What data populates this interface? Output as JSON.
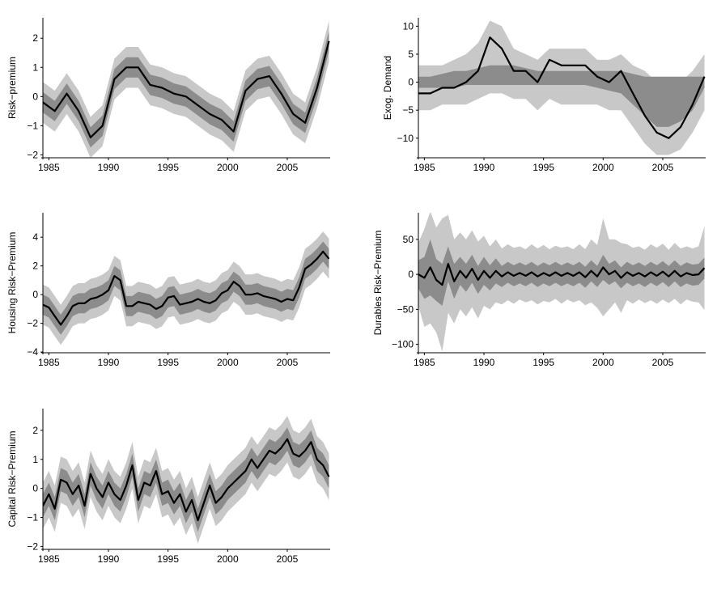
{
  "chart_data": [
    {
      "type": "line",
      "ylabel": "Risk−premium",
      "xlim": [
        1984.5,
        2008.6
      ],
      "ylim": [
        -2.1,
        2.7
      ],
      "xticks": [
        1985,
        1990,
        1995,
        2000,
        2005
      ],
      "xtick_labels": [
        "1985",
        "1990",
        "1995",
        "2000",
        "2005"
      ],
      "yticks": [
        -2,
        -1,
        0,
        1,
        2
      ],
      "ytick_labels": [
        "−2",
        "−1",
        "0",
        "1",
        "2"
      ],
      "band_inner": 0.35,
      "band_outer": 0.7,
      "band_note": "Median with two shaded uncertainty bands (dark inner, light outer)",
      "x": [
        1984.5,
        1985.5,
        1986.5,
        1987.5,
        1988.5,
        1989.5,
        1990.5,
        1991.5,
        1992.5,
        1993.5,
        1994.5,
        1995.5,
        1996.5,
        1997.5,
        1998.5,
        1999.5,
        2000.5,
        2001.5,
        2002.5,
        2003.5,
        2004.5,
        2005.5,
        2006.5,
        2007.5,
        2008.5
      ],
      "y": [
        -0.2,
        -0.5,
        0.1,
        -0.5,
        -1.4,
        -1.0,
        0.6,
        1.0,
        1.0,
        0.4,
        0.3,
        0.1,
        0.0,
        -0.3,
        -0.6,
        -0.8,
        -1.2,
        0.2,
        0.6,
        0.7,
        0.1,
        -0.6,
        -0.9,
        0.3,
        1.9
      ]
    },
    {
      "type": "line",
      "ylabel": "Exog. Demand",
      "xlim": [
        1984.5,
        2008.6
      ],
      "ylim": [
        -13.5,
        11.5
      ],
      "xticks": [
        1985,
        1990,
        1995,
        2000,
        2005
      ],
      "xtick_labels": [
        "1985",
        "1990",
        "1995",
        "2000",
        "2005"
      ],
      "yticks": [
        -10,
        -5,
        0,
        5,
        10
      ],
      "ytick_labels": [
        "−10",
        "−5",
        "0",
        "5",
        "10"
      ],
      "band_note": "Light outer band and dark inner band, not centred on the median line",
      "x": [
        1984.5,
        1985.5,
        1986.5,
        1987.5,
        1988.5,
        1989.5,
        1990.5,
        1991.5,
        1992.5,
        1993.5,
        1994.5,
        1995.5,
        1996.5,
        1997.5,
        1998.5,
        1999.5,
        2000.5,
        2001.5,
        2002.5,
        2003.5,
        2004.5,
        2005.5,
        2006.5,
        2007.5,
        2008.5
      ],
      "y": [
        -2,
        -2,
        -1,
        -1,
        0,
        2,
        8,
        6,
        2,
        2,
        0,
        4,
        3,
        3,
        3,
        1,
        0,
        2,
        -2,
        -6,
        -9,
        -10,
        -8,
        -4,
        1
      ],
      "band_dark_lower": [
        -1,
        -1,
        -1,
        -1,
        -0.5,
        -0.5,
        -0.5,
        -0.5,
        -0.5,
        -0.5,
        -0.5,
        -0.5,
        -0.5,
        -0.5,
        -0.5,
        -1,
        -1.5,
        -2,
        -4,
        -6,
        -8,
        -8,
        -7,
        -5,
        -1
      ],
      "band_dark_upper": [
        1,
        1,
        1.5,
        2,
        2,
        2.5,
        3,
        3,
        3,
        2.5,
        2,
        2,
        2,
        2,
        2,
        2,
        2,
        2,
        1.5,
        1,
        1,
        1,
        1,
        1,
        1
      ],
      "band_light_lower": [
        -5,
        -5,
        -4,
        -4,
        -4,
        -3,
        -2,
        -2,
        -3,
        -3,
        -5,
        -3,
        -4,
        -4,
        -4,
        -4,
        -5,
        -5,
        -8,
        -11,
        -13,
        -13,
        -12,
        -9,
        -5
      ],
      "band_light_upper": [
        3,
        3,
        3,
        4,
        5,
        7,
        11,
        10,
        6,
        5,
        4,
        6,
        6,
        6,
        6,
        4,
        4,
        5,
        3,
        2,
        0,
        0,
        0,
        2,
        5
      ]
    },
    {
      "type": "line",
      "ylabel": "Housing Risk−Premium",
      "xlim": [
        1984.5,
        2008.6
      ],
      "ylim": [
        -4.05,
        5.7
      ],
      "xticks": [
        1985,
        1990,
        1995,
        2000,
        2005
      ],
      "xtick_labels": [
        "1985",
        "1990",
        "1995",
        "2000",
        "2005"
      ],
      "yticks": [
        -4,
        -2,
        0,
        2,
        4
      ],
      "ytick_labels": [
        "−4",
        "−2",
        "0",
        "2",
        "4"
      ],
      "band_inner": 0.7,
      "band_outer": 1.4,
      "x": [
        1984.5,
        1985.0,
        1985.5,
        1986.0,
        1986.5,
        1987.0,
        1987.5,
        1988.0,
        1988.5,
        1989.0,
        1989.5,
        1990.0,
        1990.5,
        1991.0,
        1991.5,
        1992.0,
        1992.5,
        1993.0,
        1993.5,
        1994.0,
        1994.5,
        1995.0,
        1995.5,
        1996.0,
        1996.5,
        1997.0,
        1997.5,
        1998.0,
        1998.5,
        1999.0,
        1999.5,
        2000.0,
        2000.5,
        2001.0,
        2001.5,
        2002.0,
        2002.5,
        2003.0,
        2003.5,
        2004.0,
        2004.5,
        2005.0,
        2005.5,
        2006.0,
        2006.5,
        2007.0,
        2007.5,
        2008.0,
        2008.5
      ],
      "y": [
        -0.7,
        -0.9,
        -1.5,
        -2.1,
        -1.5,
        -0.8,
        -0.6,
        -0.6,
        -0.3,
        -0.2,
        0.0,
        0.3,
        1.3,
        1.0,
        -0.8,
        -0.8,
        -0.5,
        -0.6,
        -0.7,
        -1.0,
        -0.8,
        -0.2,
        -0.1,
        -0.7,
        -0.6,
        -0.5,
        -0.3,
        -0.5,
        -0.6,
        -0.4,
        0.1,
        0.3,
        0.9,
        0.6,
        0.0,
        0.0,
        0.1,
        -0.1,
        -0.2,
        -0.3,
        -0.5,
        -0.3,
        -0.4,
        0.5,
        1.8,
        2.1,
        2.5,
        3.0,
        2.5
      ]
    },
    {
      "type": "line",
      "ylabel": "Durables Risk−Premium",
      "xlim": [
        1984.5,
        2008.6
      ],
      "ylim": [
        -112,
        88
      ],
      "xticks": [
        1985,
        1990,
        1995,
        2000,
        2005
      ],
      "xtick_labels": [
        "1985",
        "1990",
        "1995",
        "2000",
        "2005"
      ],
      "yticks": [
        -100,
        -50,
        0,
        50
      ],
      "ytick_labels": [
        "−100",
        "−50",
        "0",
        "50"
      ],
      "band_note": "Very wide, strongly oscillating uncertainty bands around a near-zero median",
      "x": [
        1984.5,
        1985.0,
        1985.5,
        1986.0,
        1986.5,
        1987.0,
        1987.5,
        1988.0,
        1988.5,
        1989.0,
        1989.5,
        1990.0,
        1990.5,
        1991.0,
        1991.5,
        1992.0,
        1992.5,
        1993.0,
        1993.5,
        1994.0,
        1994.5,
        1995.0,
        1995.5,
        1996.0,
        1996.5,
        1997.0,
        1997.5,
        1998.0,
        1998.5,
        1999.0,
        1999.5,
        2000.0,
        2000.5,
        2001.0,
        2001.5,
        2002.0,
        2002.5,
        2003.0,
        2003.5,
        2004.0,
        2004.5,
        2005.0,
        2005.5,
        2006.0,
        2006.5,
        2007.0,
        2007.5,
        2008.0,
        2008.5
      ],
      "y": [
        0,
        -5,
        10,
        -8,
        -15,
        15,
        -10,
        5,
        -5,
        8,
        -8,
        5,
        -5,
        5,
        -3,
        3,
        -2,
        2,
        -2,
        3,
        -3,
        2,
        -2,
        3,
        -2,
        2,
        -2,
        3,
        -4,
        5,
        -3,
        10,
        0,
        5,
        -5,
        3,
        -2,
        2,
        -3,
        3,
        -2,
        4,
        -3,
        5,
        -3,
        2,
        -1,
        0,
        9
      ],
      "band_inner": [
        20,
        30,
        40,
        30,
        30,
        25,
        25,
        20,
        20,
        20,
        20,
        20,
        18,
        18,
        15,
        15,
        15,
        15,
        15,
        15,
        15,
        15,
        15,
        15,
        15,
        15,
        15,
        15,
        15,
        15,
        15,
        18,
        15,
        15,
        15,
        15,
        15,
        15,
        15,
        15,
        15,
        15,
        15,
        15,
        15,
        15,
        15,
        15,
        15
      ],
      "band_outer": [
        45,
        70,
        80,
        75,
        95,
        70,
        60,
        55,
        55,
        55,
        55,
        50,
        45,
        45,
        40,
        40,
        40,
        38,
        38,
        40,
        40,
        40,
        38,
        38,
        40,
        38,
        38,
        40,
        40,
        45,
        45,
        70,
        50,
        45,
        50,
        40,
        40,
        38,
        38,
        40,
        40,
        40,
        38,
        40,
        40,
        38,
        38,
        40,
        60
      ]
    },
    {
      "type": "line",
      "ylabel": "Capital Risk−Premium",
      "xlim": [
        1984.5,
        2008.6
      ],
      "ylim": [
        -2.1,
        2.75
      ],
      "xticks": [
        1985,
        1990,
        1995,
        2000,
        2005
      ],
      "xtick_labels": [
        "1985",
        "1990",
        "1995",
        "2000",
        "2005"
      ],
      "yticks": [
        -2,
        -1,
        0,
        1,
        2
      ],
      "ytick_labels": [
        "−2",
        "−1",
        "0",
        "1",
        "2"
      ],
      "band_inner": 0.4,
      "band_outer": 0.8,
      "x": [
        1984.5,
        1985.0,
        1985.5,
        1986.0,
        1986.5,
        1987.0,
        1987.5,
        1988.0,
        1988.5,
        1989.0,
        1989.5,
        1990.0,
        1990.5,
        1991.0,
        1991.5,
        1992.0,
        1992.5,
        1993.0,
        1993.5,
        1994.0,
        1994.5,
        1995.0,
        1995.5,
        1996.0,
        1996.5,
        1997.0,
        1997.5,
        1998.0,
        1998.5,
        1999.0,
        1999.5,
        2000.0,
        2000.5,
        2001.0,
        2001.5,
        2002.0,
        2002.5,
        2003.0,
        2003.5,
        2004.0,
        2004.5,
        2005.0,
        2005.5,
        2006.0,
        2006.5,
        2007.0,
        2007.5,
        2008.0,
        2008.5
      ],
      "y": [
        -0.6,
        -0.2,
        -0.7,
        0.3,
        0.2,
        -0.2,
        0.1,
        -0.6,
        0.5,
        0.0,
        -0.3,
        0.2,
        -0.2,
        -0.4,
        0.1,
        0.8,
        -0.4,
        0.2,
        0.1,
        0.6,
        -0.2,
        -0.1,
        -0.5,
        -0.2,
        -0.8,
        -0.4,
        -1.1,
        -0.5,
        0.1,
        -0.5,
        -0.3,
        0.0,
        0.2,
        0.4,
        0.6,
        1.0,
        0.7,
        1.0,
        1.3,
        1.2,
        1.4,
        1.7,
        1.2,
        1.1,
        1.3,
        1.6,
        1.0,
        0.8,
        0.4
      ]
    }
  ],
  "colors": {
    "median_line": "#000000",
    "band_inner": "#8c8c8c",
    "band_outer": "#c8c8c8",
    "axes": "#000000"
  }
}
